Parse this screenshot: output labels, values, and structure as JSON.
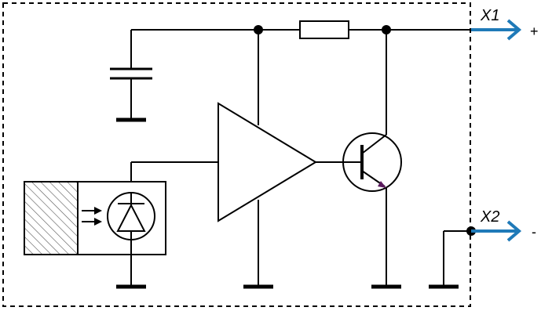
{
  "terminals": {
    "x1": {
      "label": "X1",
      "sign": "+"
    },
    "x2": {
      "label": "X2",
      "sign": "-"
    }
  },
  "colors": {
    "line": "#000000",
    "output_arrow": "#1f7ab8",
    "emitter_arrow": "#5b1a5e",
    "hatch": "#555555"
  },
  "components": [
    {
      "name": "capacitor",
      "icon": "capacitor-symbol"
    },
    {
      "name": "resistor",
      "icon": "resistor-symbol"
    },
    {
      "name": "amplifier",
      "icon": "triangle-amplifier-symbol"
    },
    {
      "name": "transistor",
      "icon": "npn-transistor-symbol"
    },
    {
      "name": "photodiode",
      "icon": "photodiode-symbol"
    },
    {
      "name": "light-source",
      "icon": "hatched-block"
    }
  ]
}
